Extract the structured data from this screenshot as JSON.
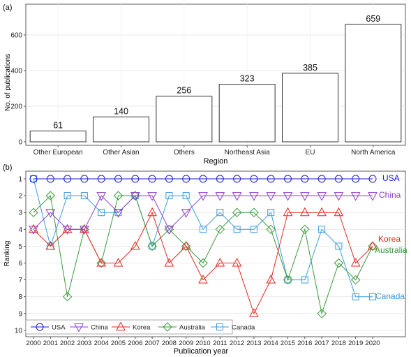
{
  "chart_data": [
    {
      "panel_label": "(a)",
      "type": "bar",
      "categories": [
        "Other European",
        "Other Asian",
        "Others",
        "Northeast Asia",
        "EU",
        "North America"
      ],
      "values": [
        61,
        140,
        256,
        323,
        385,
        659
      ],
      "data_labels": [
        "61",
        "140",
        "256",
        "323",
        "385",
        "659"
      ],
      "xlabel": "Region",
      "ylabel": "No. of publications",
      "ylim": [
        0,
        700
      ],
      "yticks": [
        0,
        200,
        400,
        600
      ],
      "grid": true
    },
    {
      "panel_label": "(b)",
      "type": "line",
      "x": [
        2000,
        2001,
        2002,
        2003,
        2004,
        2005,
        2006,
        2007,
        2008,
        2009,
        2010,
        2011,
        2012,
        2013,
        2014,
        2015,
        2016,
        2017,
        2018,
        2019,
        2020
      ],
      "xticks": [
        "2000",
        "2001",
        "2002",
        "2003",
        "2004",
        "2005",
        "2006",
        "2007",
        "2008",
        "2009",
        "2010",
        "2011",
        "2012",
        "2013",
        "2014",
        "2015",
        "2016",
        "2017",
        "2018",
        "2019",
        "2020"
      ],
      "xlabel": "Publication year",
      "ylabel": "Ranking",
      "ylim": [
        10,
        1
      ],
      "yticks": [
        1,
        2,
        3,
        4,
        5,
        6,
        7,
        8,
        9,
        10
      ],
      "inverted_y": true,
      "grid": true,
      "legend_placement": "bottom-left",
      "series": [
        {
          "name": "USA",
          "marker": "circle",
          "color": "#1a1adb",
          "values": [
            1,
            1,
            1,
            1,
            1,
            1,
            1,
            1,
            1,
            1,
            1,
            1,
            1,
            1,
            1,
            1,
            1,
            1,
            1,
            1,
            1
          ],
          "end_label": "USA"
        },
        {
          "name": "China",
          "marker": "triangle-down",
          "color": "#8e3fcf",
          "values": [
            4,
            3,
            4,
            4,
            2,
            3,
            2,
            2,
            4,
            3,
            2,
            2,
            2,
            2,
            2,
            2,
            2,
            2,
            2,
            2,
            2
          ],
          "end_label": "China"
        },
        {
          "name": "Korea",
          "marker": "triangle-up",
          "color": "#e8281f",
          "values": [
            4,
            5,
            4,
            4,
            6,
            6,
            5,
            3,
            6,
            5,
            7,
            6,
            6,
            9,
            7,
            3,
            3,
            3,
            3,
            6,
            5
          ],
          "end_label": "Korea"
        },
        {
          "name": "Australia",
          "marker": "diamond",
          "color": "#3a9a3a",
          "values": [
            3,
            2,
            8,
            4,
            6,
            2,
            2,
            5,
            4,
            5,
            6,
            4,
            3,
            3,
            4,
            7,
            4,
            9,
            6,
            7,
            5
          ],
          "end_label": "Australia"
        },
        {
          "name": "Canada",
          "marker": "square",
          "color": "#3d9be0",
          "values": [
            1,
            5,
            2,
            2,
            3,
            3,
            2,
            5,
            2,
            2,
            4,
            3,
            4,
            4,
            3,
            7,
            7,
            4,
            5,
            8,
            8
          ],
          "end_label": "Canada"
        }
      ]
    }
  ]
}
